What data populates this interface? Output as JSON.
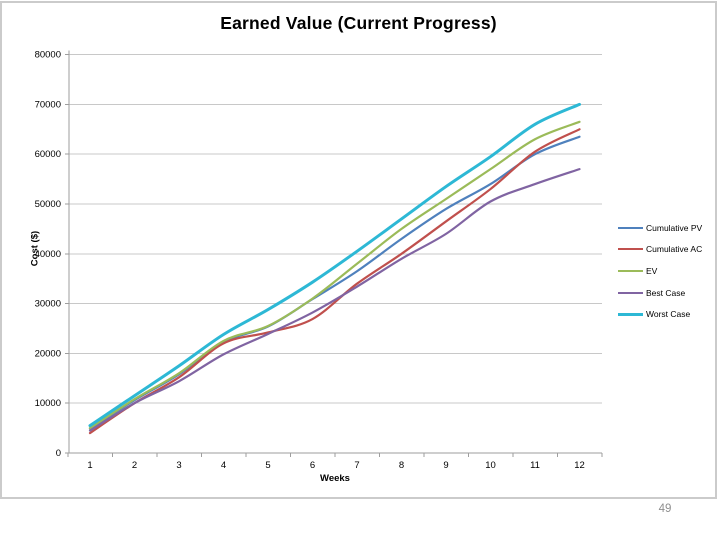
{
  "page": {
    "number": "49"
  },
  "chart_data": {
    "type": "line",
    "title": "Earned Value (Current Progress)",
    "xlabel": "Weeks",
    "ylabel": "Cost ($)",
    "x": [
      1,
      2,
      3,
      4,
      5,
      6,
      7,
      8,
      9,
      10,
      11,
      12
    ],
    "xticks": [
      1,
      2,
      3,
      4,
      5,
      6,
      7,
      8,
      9,
      10,
      11,
      12
    ],
    "ylim": [
      0,
      80000
    ],
    "yticks": [
      0,
      10000,
      20000,
      30000,
      40000,
      50000,
      60000,
      70000,
      80000
    ],
    "grid": true,
    "legend_position": "right",
    "colors": {
      "gridline": "#c8c8c8",
      "axis": "#9e9e9e",
      "tick_text": "#000000"
    },
    "series": [
      {
        "name": "Cumulative PV",
        "color": "#4F81BD",
        "width": 2.2,
        "values": [
          4900,
          10600,
          15800,
          22300,
          25400,
          30900,
          36500,
          43000,
          49000,
          54000,
          60000,
          63500
        ]
      },
      {
        "name": "Cumulative AC",
        "color": "#C0504D",
        "width": 2.2,
        "values": [
          4000,
          10000,
          15200,
          22000,
          24200,
          26900,
          34000,
          40000,
          46500,
          53000,
          60500,
          65000
        ]
      },
      {
        "name": "EV",
        "color": "#9BBB59",
        "width": 2.2,
        "values": [
          5000,
          10800,
          16000,
          22500,
          25500,
          31000,
          38000,
          45000,
          51000,
          57000,
          63000,
          66500
        ]
      },
      {
        "name": "Best Case",
        "color": "#8064A2",
        "width": 2.2,
        "values": [
          4500,
          10000,
          14400,
          19800,
          23900,
          28200,
          33400,
          39000,
          44000,
          50500,
          54000,
          57000
        ]
      },
      {
        "name": "Worst Case",
        "color": "#2DB8D5",
        "width": 3,
        "values": [
          5500,
          11500,
          17500,
          23800,
          28800,
          34300,
          40500,
          47000,
          53500,
          59500,
          66000,
          70000
        ]
      }
    ]
  }
}
